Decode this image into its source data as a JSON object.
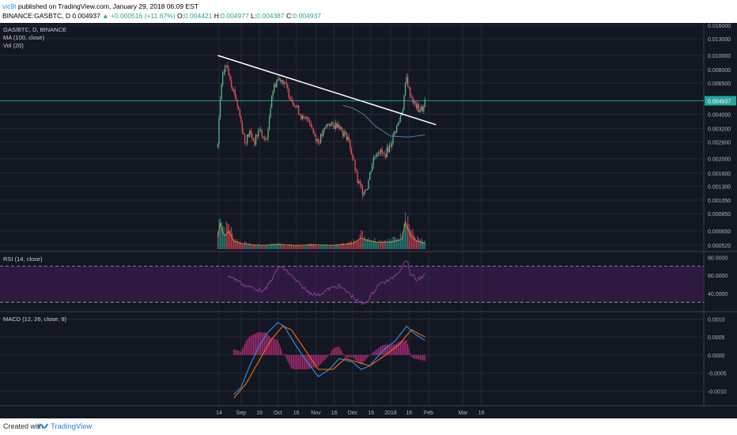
{
  "header": {
    "user": "vic9t",
    "published": "published on TradingView.com, January 29, 2018 06:09 EST",
    "symbol": "BINANCE:GASBTC, D",
    "price": "0.004937",
    "change": "▲ +0.000516 (+11.67%)",
    "o_label": "O:",
    "o_value": "0.004421",
    "h_label": "H:",
    "h_value": "0.004977",
    "l_label": "L:",
    "l_value": "0.004387",
    "c_label": "C:",
    "c_value": "0.004937"
  },
  "footer": {
    "created_with": "Created with",
    "brand": "TradingView",
    "logo_icon": "tradingview-logo-icon"
  },
  "colors": {
    "background": "#131722",
    "grid": "#252a36",
    "up": "#26a69a",
    "up_candle": "#53b987",
    "down": "#eb4d5c",
    "trendline": "#ffffff",
    "ma": "#4a7ea8",
    "vol_ma": "#c98b3b",
    "rsi": "#8a3d9b",
    "rsi_band": "#3a1d4a",
    "macd": "#2196f3",
    "signal": "#ff6d00",
    "hist": "#d0308a"
  },
  "chart_data": [
    {
      "type": "candlestick",
      "pane": "price",
      "legend": [
        "GAS/BTC, D, BINANCE",
        "MA (100, close)",
        "Vol (20)"
      ],
      "y_scale": "log",
      "y_ticks": [
        "0.016000",
        "0.013000",
        "0.010000",
        "0.008000",
        "0.006500",
        "0.004937",
        "0.004000",
        "0.003200",
        "0.002600",
        "0.002000",
        "0.001600",
        "0.001300",
        "0.001050",
        "0.000850",
        "0.000650",
        "0.000520"
      ],
      "last_price": "0.004937",
      "x_ticks": [
        "14",
        "Sep",
        "16",
        "Oct",
        "16",
        "Nov",
        "16",
        "Dec",
        "16",
        "2018",
        "16",
        "Feb",
        "Mar",
        "16"
      ],
      "trendline": {
        "start": [
          "2017-08-13",
          0.01
        ],
        "end": [
          "2018-02-07",
          0.0034
        ]
      },
      "ma100": [
        [
          "2017-11-23",
          0.0046
        ],
        [
          "2017-12-01",
          0.0044
        ],
        [
          "2017-12-10",
          0.004
        ],
        [
          "2017-12-20",
          0.0033
        ],
        [
          "2018-01-01",
          0.00285
        ],
        [
          "2018-01-15",
          0.0028
        ],
        [
          "2018-01-29",
          0.0029
        ]
      ],
      "anchors": [
        [
          "2017-08-13",
          0.0024
        ],
        [
          "2017-08-15",
          0.005
        ],
        [
          "2017-08-17",
          0.0072
        ],
        [
          "2017-08-19",
          0.0085
        ],
        [
          "2017-08-21",
          0.0082
        ],
        [
          "2017-08-24",
          0.0065
        ],
        [
          "2017-08-28",
          0.005
        ],
        [
          "2017-09-01",
          0.0035
        ],
        [
          "2017-09-04",
          0.0026
        ],
        [
          "2017-09-08",
          0.003
        ],
        [
          "2017-09-12",
          0.0026
        ],
        [
          "2017-09-16",
          0.0032
        ],
        [
          "2017-09-20",
          0.0026
        ],
        [
          "2017-09-23",
          0.003
        ],
        [
          "2017-09-26",
          0.0055
        ],
        [
          "2017-09-30",
          0.0068
        ],
        [
          "2017-10-03",
          0.007
        ],
        [
          "2017-10-06",
          0.0066
        ],
        [
          "2017-10-10",
          0.0055
        ],
        [
          "2017-10-14",
          0.0048
        ],
        [
          "2017-10-18",
          0.0042
        ],
        [
          "2017-10-22",
          0.0036
        ],
        [
          "2017-10-26",
          0.0038
        ],
        [
          "2017-10-30",
          0.003
        ],
        [
          "2017-11-03",
          0.0026
        ],
        [
          "2017-11-07",
          0.003
        ],
        [
          "2017-11-11",
          0.0035
        ],
        [
          "2017-11-15",
          0.0033
        ],
        [
          "2017-11-19",
          0.0035
        ],
        [
          "2017-11-23",
          0.003
        ],
        [
          "2017-11-27",
          0.0028
        ],
        [
          "2017-12-01",
          0.002
        ],
        [
          "2017-12-05",
          0.0014
        ],
        [
          "2017-12-09",
          0.0012
        ],
        [
          "2017-12-13",
          0.0013
        ],
        [
          "2017-12-18",
          0.002
        ],
        [
          "2017-12-22",
          0.0023
        ],
        [
          "2017-12-27",
          0.0021
        ],
        [
          "2018-01-01",
          0.0025
        ],
        [
          "2018-01-04",
          0.003
        ],
        [
          "2018-01-08",
          0.0036
        ],
        [
          "2018-01-11",
          0.0045
        ],
        [
          "2018-01-14",
          0.007
        ],
        [
          "2018-01-16",
          0.0058
        ],
        [
          "2018-01-20",
          0.0047
        ],
        [
          "2018-01-24",
          0.0043
        ],
        [
          "2018-01-28",
          0.0044
        ],
        [
          "2018-01-29",
          0.0049
        ]
      ],
      "volume_anchors": [
        [
          "2017-08-13",
          0.4
        ],
        [
          "2017-08-15",
          0.92
        ],
        [
          "2017-08-17",
          0.55
        ],
        [
          "2017-08-19",
          0.45
        ],
        [
          "2017-08-22",
          0.6
        ],
        [
          "2017-08-26",
          0.25
        ],
        [
          "2017-09-01",
          0.15
        ],
        [
          "2017-09-10",
          0.1
        ],
        [
          "2017-09-20",
          0.08
        ],
        [
          "2017-10-01",
          0.12
        ],
        [
          "2017-10-15",
          0.08
        ],
        [
          "2017-11-01",
          0.1
        ],
        [
          "2017-11-15",
          0.08
        ],
        [
          "2017-12-01",
          0.15
        ],
        [
          "2017-12-08",
          0.35
        ],
        [
          "2017-12-12",
          0.28
        ],
        [
          "2017-12-20",
          0.2
        ],
        [
          "2018-01-01",
          0.2
        ],
        [
          "2018-01-10",
          0.3
        ],
        [
          "2018-01-13",
          0.95
        ],
        [
          "2018-01-15",
          0.7
        ],
        [
          "2018-01-18",
          0.4
        ],
        [
          "2018-01-22",
          0.25
        ],
        [
          "2018-01-29",
          0.15
        ]
      ]
    },
    {
      "type": "line",
      "pane": "rsi",
      "legend": "RSI (14, close)",
      "y_ticks": [
        "80.0000",
        "60.0000",
        "40.0000"
      ],
      "bands": [
        70,
        30
      ],
      "anchors": [
        [
          "2017-08-21",
          60
        ],
        [
          "2017-08-28",
          55
        ],
        [
          "2017-09-05",
          48
        ],
        [
          "2017-09-13",
          45
        ],
        [
          "2017-09-20",
          42
        ],
        [
          "2017-09-27",
          58
        ],
        [
          "2017-10-02",
          70
        ],
        [
          "2017-10-08",
          65
        ],
        [
          "2017-10-15",
          55
        ],
        [
          "2017-10-25",
          42
        ],
        [
          "2017-11-03",
          38
        ],
        [
          "2017-11-12",
          45
        ],
        [
          "2017-11-20",
          48
        ],
        [
          "2017-11-28",
          40
        ],
        [
          "2017-12-06",
          30
        ],
        [
          "2017-12-10",
          28
        ],
        [
          "2017-12-15",
          35
        ],
        [
          "2017-12-22",
          50
        ],
        [
          "2018-01-01",
          55
        ],
        [
          "2018-01-08",
          65
        ],
        [
          "2018-01-14",
          78
        ],
        [
          "2018-01-17",
          62
        ],
        [
          "2018-01-22",
          55
        ],
        [
          "2018-01-29",
          60
        ]
      ]
    },
    {
      "type": "line",
      "pane": "macd",
      "legend": "MACD (12, 26, close, 9)",
      "y_ticks": [
        "0.0010",
        "0.0005",
        "0.0000",
        "-0.0005",
        "-0.0010"
      ],
      "series": [
        {
          "name": "MACD",
          "values": [
            [
              "2017-08-26",
              -0.0011
            ],
            [
              "2017-09-01",
              -0.0009
            ],
            [
              "2017-09-08",
              -0.0003
            ],
            [
              "2017-09-15",
              0.0002
            ],
            [
              "2017-09-22",
              0.0006
            ],
            [
              "2017-10-01",
              0.0009
            ],
            [
              "2017-10-06",
              0.0008
            ],
            [
              "2017-10-15",
              0.0003
            ],
            [
              "2017-10-25",
              -0.0002
            ],
            [
              "2017-11-03",
              -0.0006
            ],
            [
              "2017-11-12",
              -0.0004
            ],
            [
              "2017-11-20",
              -0.0001
            ],
            [
              "2017-12-01",
              -0.0002
            ],
            [
              "2017-12-08",
              -0.0004
            ],
            [
              "2017-12-15",
              -0.0003
            ],
            [
              "2017-12-25",
              0.0001
            ],
            [
              "2018-01-05",
              0.0004
            ],
            [
              "2018-01-14",
              0.0008
            ],
            [
              "2018-01-20",
              0.0006
            ],
            [
              "2018-01-29",
              0.0004
            ]
          ]
        },
        {
          "name": "Signal",
          "values": [
            [
              "2017-08-26",
              -0.0012
            ],
            [
              "2017-09-05",
              -0.0008
            ],
            [
              "2017-09-15",
              -0.0002
            ],
            [
              "2017-09-25",
              0.0004
            ],
            [
              "2017-10-05",
              0.0008
            ],
            [
              "2017-10-12",
              0.0007
            ],
            [
              "2017-10-22",
              0.0002
            ],
            [
              "2017-11-03",
              -0.0004
            ],
            [
              "2017-11-15",
              -0.0004
            ],
            [
              "2017-11-25",
              -0.0001
            ],
            [
              "2017-12-05",
              -0.0002
            ],
            [
              "2017-12-15",
              -0.0003
            ],
            [
              "2017-12-28",
              0.0
            ],
            [
              "2018-01-08",
              0.0003
            ],
            [
              "2018-01-18",
              0.0007
            ],
            [
              "2018-01-29",
              0.0005
            ]
          ]
        }
      ]
    }
  ]
}
